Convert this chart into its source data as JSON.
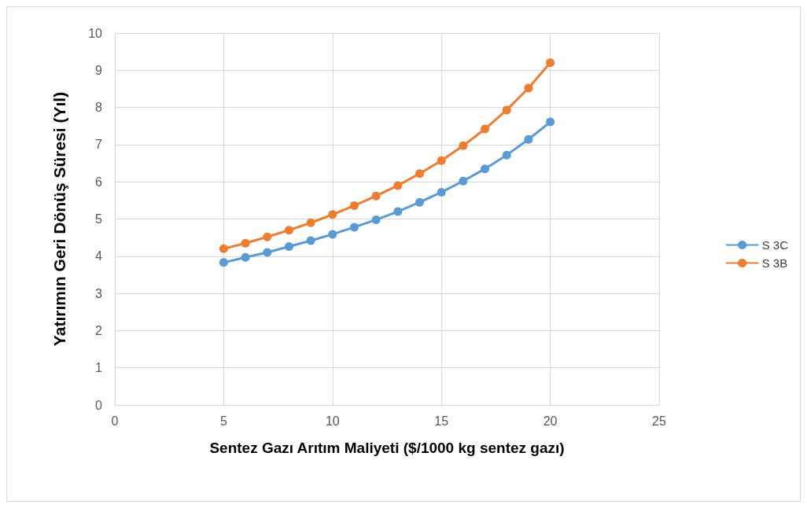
{
  "chart_data": {
    "type": "line",
    "xlabel": "Sentez Gazı Arıtım Maliyeti ($/1000 kg sentez gazı)",
    "ylabel": "Yatırımın Geri Dönüş Süresi (Yıl)",
    "x": [
      5,
      6,
      7,
      8,
      9,
      10,
      11,
      12,
      13,
      14,
      15,
      16,
      17,
      18,
      19,
      20
    ],
    "series": [
      {
        "name": "S 3C",
        "color": "#5b9bd5",
        "values": [
          3.83,
          3.97,
          4.1,
          4.26,
          4.42,
          4.59,
          4.78,
          4.98,
          5.2,
          5.45,
          5.72,
          6.02,
          6.35,
          6.72,
          7.14,
          7.61
        ]
      },
      {
        "name": "S 3B",
        "color": "#ed7d31",
        "values": [
          4.2,
          4.35,
          4.52,
          4.7,
          4.9,
          5.12,
          5.36,
          5.62,
          5.9,
          6.22,
          6.57,
          6.97,
          7.42,
          7.93,
          8.52,
          9.2
        ]
      }
    ],
    "xlim": [
      0,
      25
    ],
    "xticks": [
      0,
      5,
      10,
      15,
      20,
      25
    ],
    "ylim": [
      0,
      10
    ],
    "yticks": [
      0,
      1,
      2,
      3,
      4,
      5,
      6,
      7,
      8,
      9,
      10
    ],
    "grid": true,
    "legend": "right",
    "marker": "circle",
    "line_style": "solid"
  }
}
